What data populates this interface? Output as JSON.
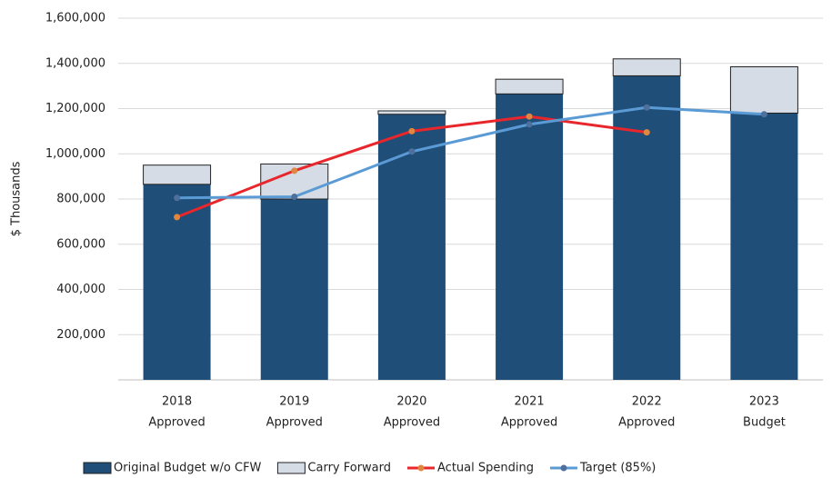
{
  "chart_data": {
    "type": "bar",
    "y_label": "$ Thousands",
    "categories": [
      [
        "2018",
        "Approved"
      ],
      [
        "2019",
        "Approved"
      ],
      [
        "2020",
        "Approved"
      ],
      [
        "2021",
        "Approved"
      ],
      [
        "2022",
        "Approved"
      ],
      [
        "2023",
        "Budget"
      ]
    ],
    "series": [
      {
        "name": "Original Budget w/o CFW",
        "kind": "bar",
        "color": "#1f4e79",
        "values": [
          865000,
          800000,
          1175000,
          1265000,
          1345000,
          1180000
        ]
      },
      {
        "name": "Carry Forward",
        "kind": "bar",
        "color": "#d6dce5",
        "values": [
          85000,
          155000,
          15000,
          65000,
          75000,
          205000
        ]
      },
      {
        "name": "Actual Spending",
        "kind": "line",
        "color": "#e8262b",
        "marker_color": "#e0873f",
        "values": [
          720000,
          925000,
          1100000,
          1165000,
          1095000,
          null
        ]
      },
      {
        "name": "Target (85%)",
        "kind": "line",
        "color": "#5b9bd5",
        "marker_color": "#4f6f9c",
        "values": [
          805000,
          810000,
          1010000,
          1130000,
          1205000,
          1175000
        ]
      }
    ],
    "stacked": true,
    "ylim": [
      0,
      1600000
    ],
    "yticks": [
      {
        "value": 200000,
        "label": "200,000"
      },
      {
        "value": 400000,
        "label": "400,000"
      },
      {
        "value": 600000,
        "label": "600,000"
      },
      {
        "value": 800000,
        "label": "800,000"
      },
      {
        "value": 1000000,
        "label": "1,000,000"
      },
      {
        "value": 1200000,
        "label": "1,200,000"
      },
      {
        "value": 1400000,
        "label": "1,400,000"
      },
      {
        "value": 1600000,
        "label": "1,600,000"
      }
    ],
    "grid": true,
    "legend": "bottom"
  }
}
